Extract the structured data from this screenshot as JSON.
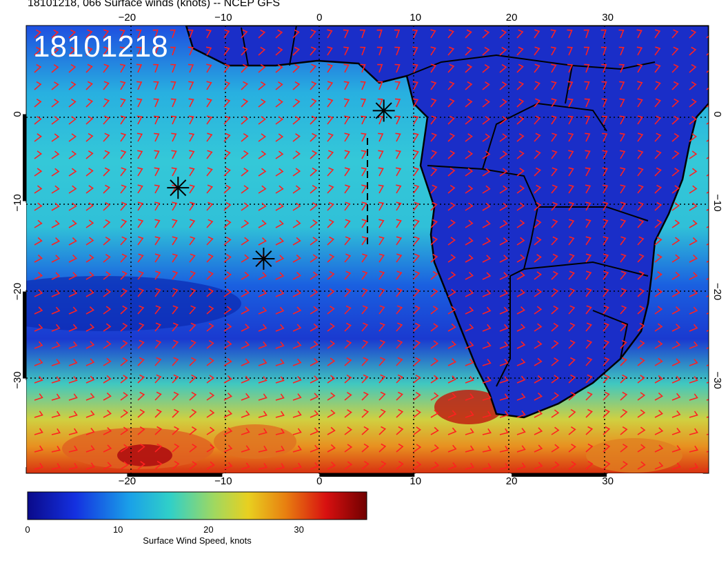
{
  "title": "18101218, 066 Surface winds (knots) -- NCEP GFS",
  "date_stamp": "18101218",
  "axes": {
    "lon_ticks": [
      {
        "value": -20,
        "label": "−20"
      },
      {
        "value": -10,
        "label": "−10"
      },
      {
        "value": 0,
        "label": "0"
      },
      {
        "value": 10,
        "label": "10"
      },
      {
        "value": 20,
        "label": "20"
      },
      {
        "value": 30,
        "label": "30"
      }
    ],
    "lat_ticks": [
      {
        "value": 0,
        "label": "0"
      },
      {
        "value": -10,
        "label": "−10"
      },
      {
        "value": -20,
        "label": "−20"
      },
      {
        "value": -30,
        "label": "−30"
      }
    ],
    "lon_range": [
      -30.5,
      40.5
    ],
    "lat_range": [
      -40.5,
      10.0
    ]
  },
  "colorbar": {
    "label": "Surface Wind Speed, knots",
    "ticks": [
      {
        "value": 0,
        "label": "0"
      },
      {
        "value": 10,
        "label": "10"
      },
      {
        "value": 20,
        "label": "20"
      },
      {
        "value": 30,
        "label": "30"
      }
    ],
    "range": [
      0,
      37.5
    ],
    "colors": [
      "#0a0a8a",
      "#1430e0",
      "#1aa0e8",
      "#30d0c8",
      "#a0d860",
      "#e8d020",
      "#e88010",
      "#d81010",
      "#800000"
    ]
  },
  "markers": [
    {
      "name": "storm-marker-a",
      "lon": 6.7,
      "lat": 0.4
    },
    {
      "name": "storm-marker-b",
      "lon": -14.7,
      "lat": -8.3
    },
    {
      "name": "storm-marker-c",
      "lon": -5.8,
      "lat": -16.3
    }
  ],
  "colors": {
    "wind_barb": "#ff2020",
    "coastline": "#000000",
    "ocean_base": "#1a3ad8",
    "land_base": "#1828c8"
  }
}
